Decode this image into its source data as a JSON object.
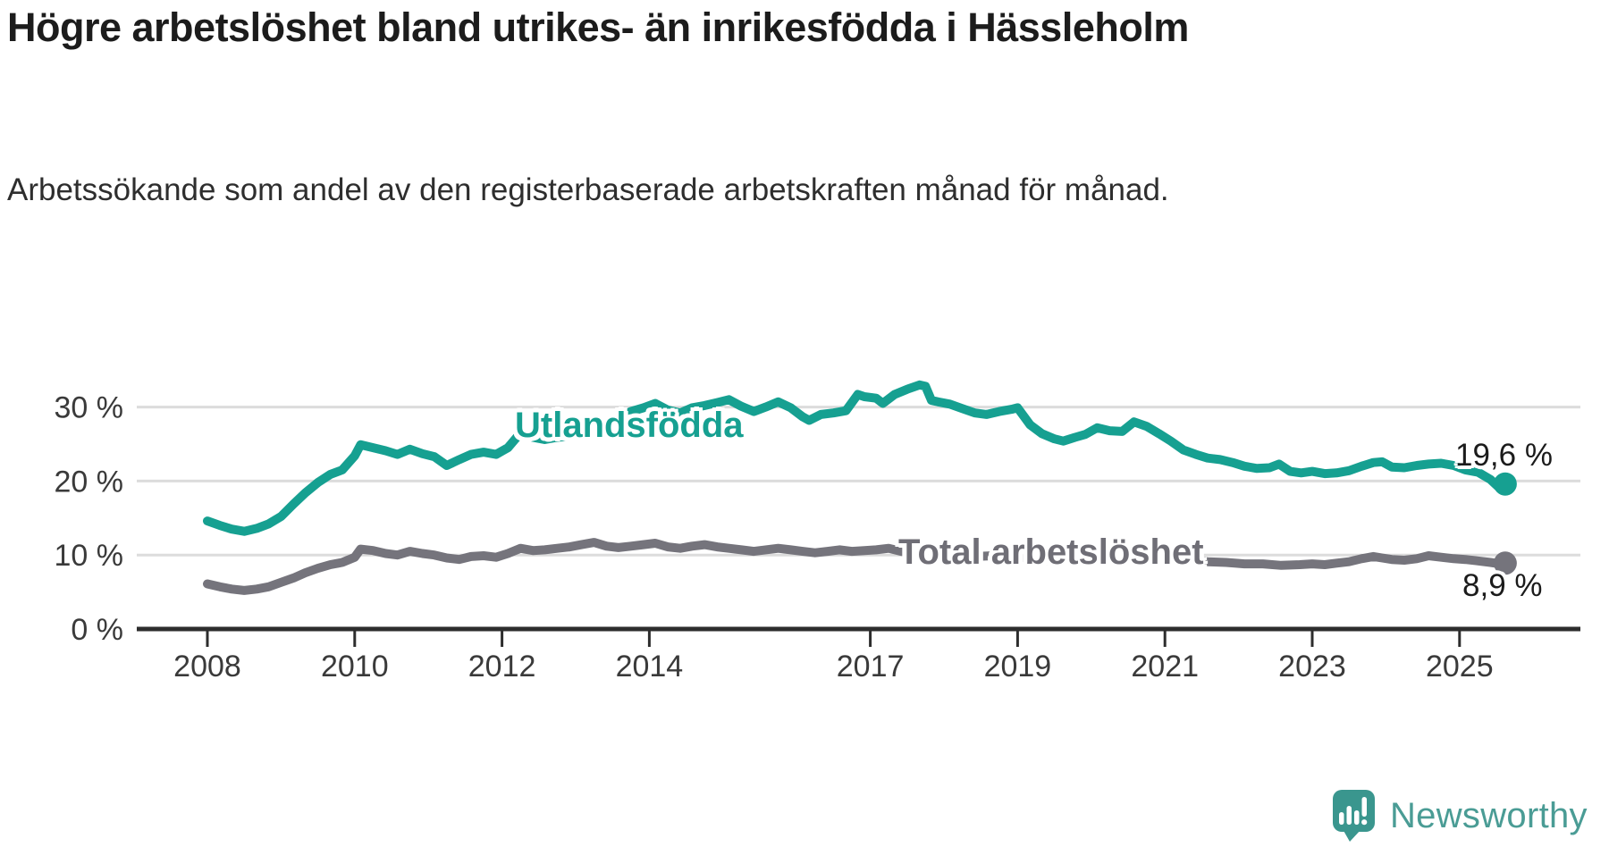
{
  "header": {
    "title": "Högre arbetslöshet bland utrikes- än inrikesfödda i Hässleholm",
    "subtitle": "Arbetssökande som andel av den registerbaserade arbetskraften månad för månad."
  },
  "chart_data": {
    "type": "line",
    "title": "Högre arbetslöshet bland utrikes- än inrikesfödda i Hässleholm",
    "subtitle": "Arbetssökande som andel av den registerbaserade arbetskraften månad för månad.",
    "unit": "%",
    "x_axis": {
      "ticks": [
        {
          "year": 2008,
          "label": "2008"
        },
        {
          "year": 2010,
          "label": "2010"
        },
        {
          "year": 2012,
          "label": "2012"
        },
        {
          "year": 2014,
          "label": "2014"
        },
        {
          "year": 2017,
          "label": "2017"
        },
        {
          "year": 2019,
          "label": "2019"
        },
        {
          "year": 2021,
          "label": "2021"
        },
        {
          "year": 2023,
          "label": "2023"
        },
        {
          "year": 2025,
          "label": "2025"
        }
      ]
    },
    "y_axis": {
      "ticks": [
        {
          "value": 0,
          "label": "0 %"
        },
        {
          "value": 10,
          "label": "10 %"
        },
        {
          "value": 20,
          "label": "20 %"
        },
        {
          "value": 30,
          "label": "30 %"
        }
      ],
      "gridlines": [
        10,
        20,
        30
      ],
      "range": [
        0,
        35
      ]
    },
    "series": [
      {
        "name": "Utlandsfödda",
        "color": "#16a091",
        "end_label": "19,6 %",
        "end_value": 19.6,
        "points": [
          [
            2008.0,
            14.6
          ],
          [
            2008.17,
            14.0
          ],
          [
            2008.33,
            13.5
          ],
          [
            2008.5,
            13.2
          ],
          [
            2008.67,
            13.6
          ],
          [
            2008.83,
            14.2
          ],
          [
            2009.0,
            15.2
          ],
          [
            2009.17,
            16.9
          ],
          [
            2009.33,
            18.4
          ],
          [
            2009.5,
            19.8
          ],
          [
            2009.67,
            20.9
          ],
          [
            2009.83,
            21.5
          ],
          [
            2010.0,
            23.4
          ],
          [
            2010.08,
            24.9
          ],
          [
            2010.25,
            24.5
          ],
          [
            2010.42,
            24.1
          ],
          [
            2010.58,
            23.6
          ],
          [
            2010.75,
            24.3
          ],
          [
            2010.92,
            23.7
          ],
          [
            2011.08,
            23.3
          ],
          [
            2011.25,
            22.1
          ],
          [
            2011.42,
            22.9
          ],
          [
            2011.58,
            23.6
          ],
          [
            2011.75,
            23.9
          ],
          [
            2011.92,
            23.6
          ],
          [
            2012.08,
            24.5
          ],
          [
            2012.25,
            26.5
          ],
          [
            2012.42,
            25.9
          ],
          [
            2012.58,
            25.6
          ],
          [
            2012.75,
            25.9
          ],
          [
            2012.92,
            26.1
          ],
          [
            2013.08,
            26.5
          ],
          [
            2013.25,
            27.1
          ],
          [
            2013.42,
            27.6
          ],
          [
            2013.58,
            28.4
          ],
          [
            2013.75,
            29.4
          ],
          [
            2013.92,
            29.9
          ],
          [
            2014.08,
            30.5
          ],
          [
            2014.25,
            29.6
          ],
          [
            2014.42,
            29.2
          ],
          [
            2014.58,
            29.9
          ],
          [
            2014.75,
            30.2
          ],
          [
            2014.92,
            30.6
          ],
          [
            2015.08,
            31.0
          ],
          [
            2015.25,
            30.1
          ],
          [
            2015.42,
            29.4
          ],
          [
            2015.58,
            30.0
          ],
          [
            2015.75,
            30.7
          ],
          [
            2015.92,
            29.9
          ],
          [
            2016.08,
            28.7
          ],
          [
            2016.17,
            28.2
          ],
          [
            2016.33,
            29.0
          ],
          [
            2016.5,
            29.2
          ],
          [
            2016.67,
            29.5
          ],
          [
            2016.83,
            31.7
          ],
          [
            2016.92,
            31.4
          ],
          [
            2017.08,
            31.2
          ],
          [
            2017.17,
            30.5
          ],
          [
            2017.33,
            31.7
          ],
          [
            2017.5,
            32.4
          ],
          [
            2017.67,
            33.0
          ],
          [
            2017.75,
            32.8
          ],
          [
            2017.83,
            30.9
          ],
          [
            2017.92,
            30.7
          ],
          [
            2018.08,
            30.4
          ],
          [
            2018.25,
            29.8
          ],
          [
            2018.42,
            29.2
          ],
          [
            2018.58,
            29.0
          ],
          [
            2018.75,
            29.4
          ],
          [
            2018.92,
            29.7
          ],
          [
            2019.0,
            29.9
          ],
          [
            2019.17,
            27.6
          ],
          [
            2019.33,
            26.4
          ],
          [
            2019.5,
            25.7
          ],
          [
            2019.62,
            25.4
          ],
          [
            2019.78,
            25.9
          ],
          [
            2019.92,
            26.3
          ],
          [
            2020.08,
            27.2
          ],
          [
            2020.25,
            26.8
          ],
          [
            2020.42,
            26.7
          ],
          [
            2020.58,
            28.0
          ],
          [
            2020.75,
            27.4
          ],
          [
            2020.92,
            26.4
          ],
          [
            2021.08,
            25.4
          ],
          [
            2021.25,
            24.2
          ],
          [
            2021.42,
            23.6
          ],
          [
            2021.58,
            23.1
          ],
          [
            2021.75,
            22.9
          ],
          [
            2021.92,
            22.5
          ],
          [
            2022.08,
            22.0
          ],
          [
            2022.25,
            21.7
          ],
          [
            2022.42,
            21.8
          ],
          [
            2022.55,
            22.3
          ],
          [
            2022.7,
            21.3
          ],
          [
            2022.85,
            21.1
          ],
          [
            2023.0,
            21.3
          ],
          [
            2023.17,
            21.0
          ],
          [
            2023.33,
            21.1
          ],
          [
            2023.5,
            21.4
          ],
          [
            2023.67,
            22.0
          ],
          [
            2023.83,
            22.5
          ],
          [
            2023.95,
            22.6
          ],
          [
            2024.08,
            21.9
          ],
          [
            2024.25,
            21.8
          ],
          [
            2024.42,
            22.1
          ],
          [
            2024.58,
            22.3
          ],
          [
            2024.75,
            22.4
          ],
          [
            2024.92,
            22.1
          ],
          [
            2025.08,
            21.5
          ],
          [
            2025.25,
            21.2
          ],
          [
            2025.42,
            20.2
          ],
          [
            2025.55,
            19.0
          ],
          [
            2025.62,
            19.6
          ]
        ]
      },
      {
        "name": "Total arbetslöshet",
        "color": "#75747c",
        "label_color": "#6f6e76",
        "end_label": "8,9 %",
        "end_value": 8.9,
        "points": [
          [
            2008.0,
            6.1
          ],
          [
            2008.17,
            5.7
          ],
          [
            2008.33,
            5.4
          ],
          [
            2008.5,
            5.2
          ],
          [
            2008.67,
            5.4
          ],
          [
            2008.83,
            5.7
          ],
          [
            2009.0,
            6.3
          ],
          [
            2009.17,
            6.9
          ],
          [
            2009.33,
            7.6
          ],
          [
            2009.5,
            8.2
          ],
          [
            2009.67,
            8.7
          ],
          [
            2009.83,
            9.0
          ],
          [
            2010.0,
            9.7
          ],
          [
            2010.08,
            10.8
          ],
          [
            2010.25,
            10.6
          ],
          [
            2010.42,
            10.2
          ],
          [
            2010.58,
            10.0
          ],
          [
            2010.75,
            10.5
          ],
          [
            2010.92,
            10.2
          ],
          [
            2011.08,
            10.0
          ],
          [
            2011.25,
            9.6
          ],
          [
            2011.42,
            9.4
          ],
          [
            2011.58,
            9.8
          ],
          [
            2011.75,
            9.9
          ],
          [
            2011.92,
            9.7
          ],
          [
            2012.08,
            10.2
          ],
          [
            2012.25,
            10.9
          ],
          [
            2012.42,
            10.6
          ],
          [
            2012.58,
            10.7
          ],
          [
            2012.75,
            10.9
          ],
          [
            2012.92,
            11.1
          ],
          [
            2013.08,
            11.4
          ],
          [
            2013.25,
            11.7
          ],
          [
            2013.42,
            11.2
          ],
          [
            2013.58,
            11.0
          ],
          [
            2013.75,
            11.2
          ],
          [
            2013.92,
            11.4
          ],
          [
            2014.08,
            11.6
          ],
          [
            2014.25,
            11.1
          ],
          [
            2014.42,
            10.9
          ],
          [
            2014.58,
            11.2
          ],
          [
            2014.75,
            11.4
          ],
          [
            2014.92,
            11.1
          ],
          [
            2015.08,
            10.9
          ],
          [
            2015.25,
            10.7
          ],
          [
            2015.42,
            10.5
          ],
          [
            2015.58,
            10.7
          ],
          [
            2015.75,
            10.9
          ],
          [
            2015.92,
            10.7
          ],
          [
            2016.08,
            10.5
          ],
          [
            2016.25,
            10.3
          ],
          [
            2016.42,
            10.5
          ],
          [
            2016.58,
            10.7
          ],
          [
            2016.75,
            10.5
          ],
          [
            2016.92,
            10.6
          ],
          [
            2017.08,
            10.7
          ],
          [
            2017.25,
            10.9
          ],
          [
            2017.42,
            10.5
          ],
          [
            2017.58,
            10.3
          ],
          [
            2017.75,
            10.2
          ],
          [
            2017.92,
            10.1
          ],
          [
            2018.17,
            10.0
          ],
          [
            2018.42,
            9.8
          ],
          [
            2018.67,
            9.9
          ],
          [
            2018.92,
            9.9
          ],
          [
            2019.17,
            9.5
          ],
          [
            2019.42,
            9.2
          ],
          [
            2019.67,
            9.3
          ],
          [
            2019.92,
            9.5
          ],
          [
            2020.17,
            9.8
          ],
          [
            2020.42,
            10.2
          ],
          [
            2020.58,
            10.4
          ],
          [
            2020.83,
            10.1
          ],
          [
            2021.08,
            9.8
          ],
          [
            2021.33,
            9.4
          ],
          [
            2021.58,
            9.1
          ],
          [
            2021.83,
            9.0
          ],
          [
            2022.08,
            8.8
          ],
          [
            2022.33,
            8.8
          ],
          [
            2022.58,
            8.6
          ],
          [
            2022.83,
            8.7
          ],
          [
            2023.0,
            8.8
          ],
          [
            2023.17,
            8.7
          ],
          [
            2023.33,
            8.9
          ],
          [
            2023.5,
            9.1
          ],
          [
            2023.67,
            9.5
          ],
          [
            2023.83,
            9.8
          ],
          [
            2023.95,
            9.6
          ],
          [
            2024.08,
            9.4
          ],
          [
            2024.25,
            9.3
          ],
          [
            2024.42,
            9.5
          ],
          [
            2024.58,
            9.9
          ],
          [
            2024.75,
            9.7
          ],
          [
            2024.92,
            9.5
          ],
          [
            2025.08,
            9.4
          ],
          [
            2025.25,
            9.2
          ],
          [
            2025.42,
            9.0
          ],
          [
            2025.55,
            8.8
          ],
          [
            2025.62,
            8.9
          ]
        ]
      }
    ],
    "colors": {
      "gridline": "#dcdcdc",
      "axis": "#2d2d2d",
      "tick_text": "#3a3a3a"
    }
  },
  "footer": {
    "brand": "Newsworthy",
    "brand_color": "#4a9c95",
    "icon_color": "#3a968e"
  }
}
